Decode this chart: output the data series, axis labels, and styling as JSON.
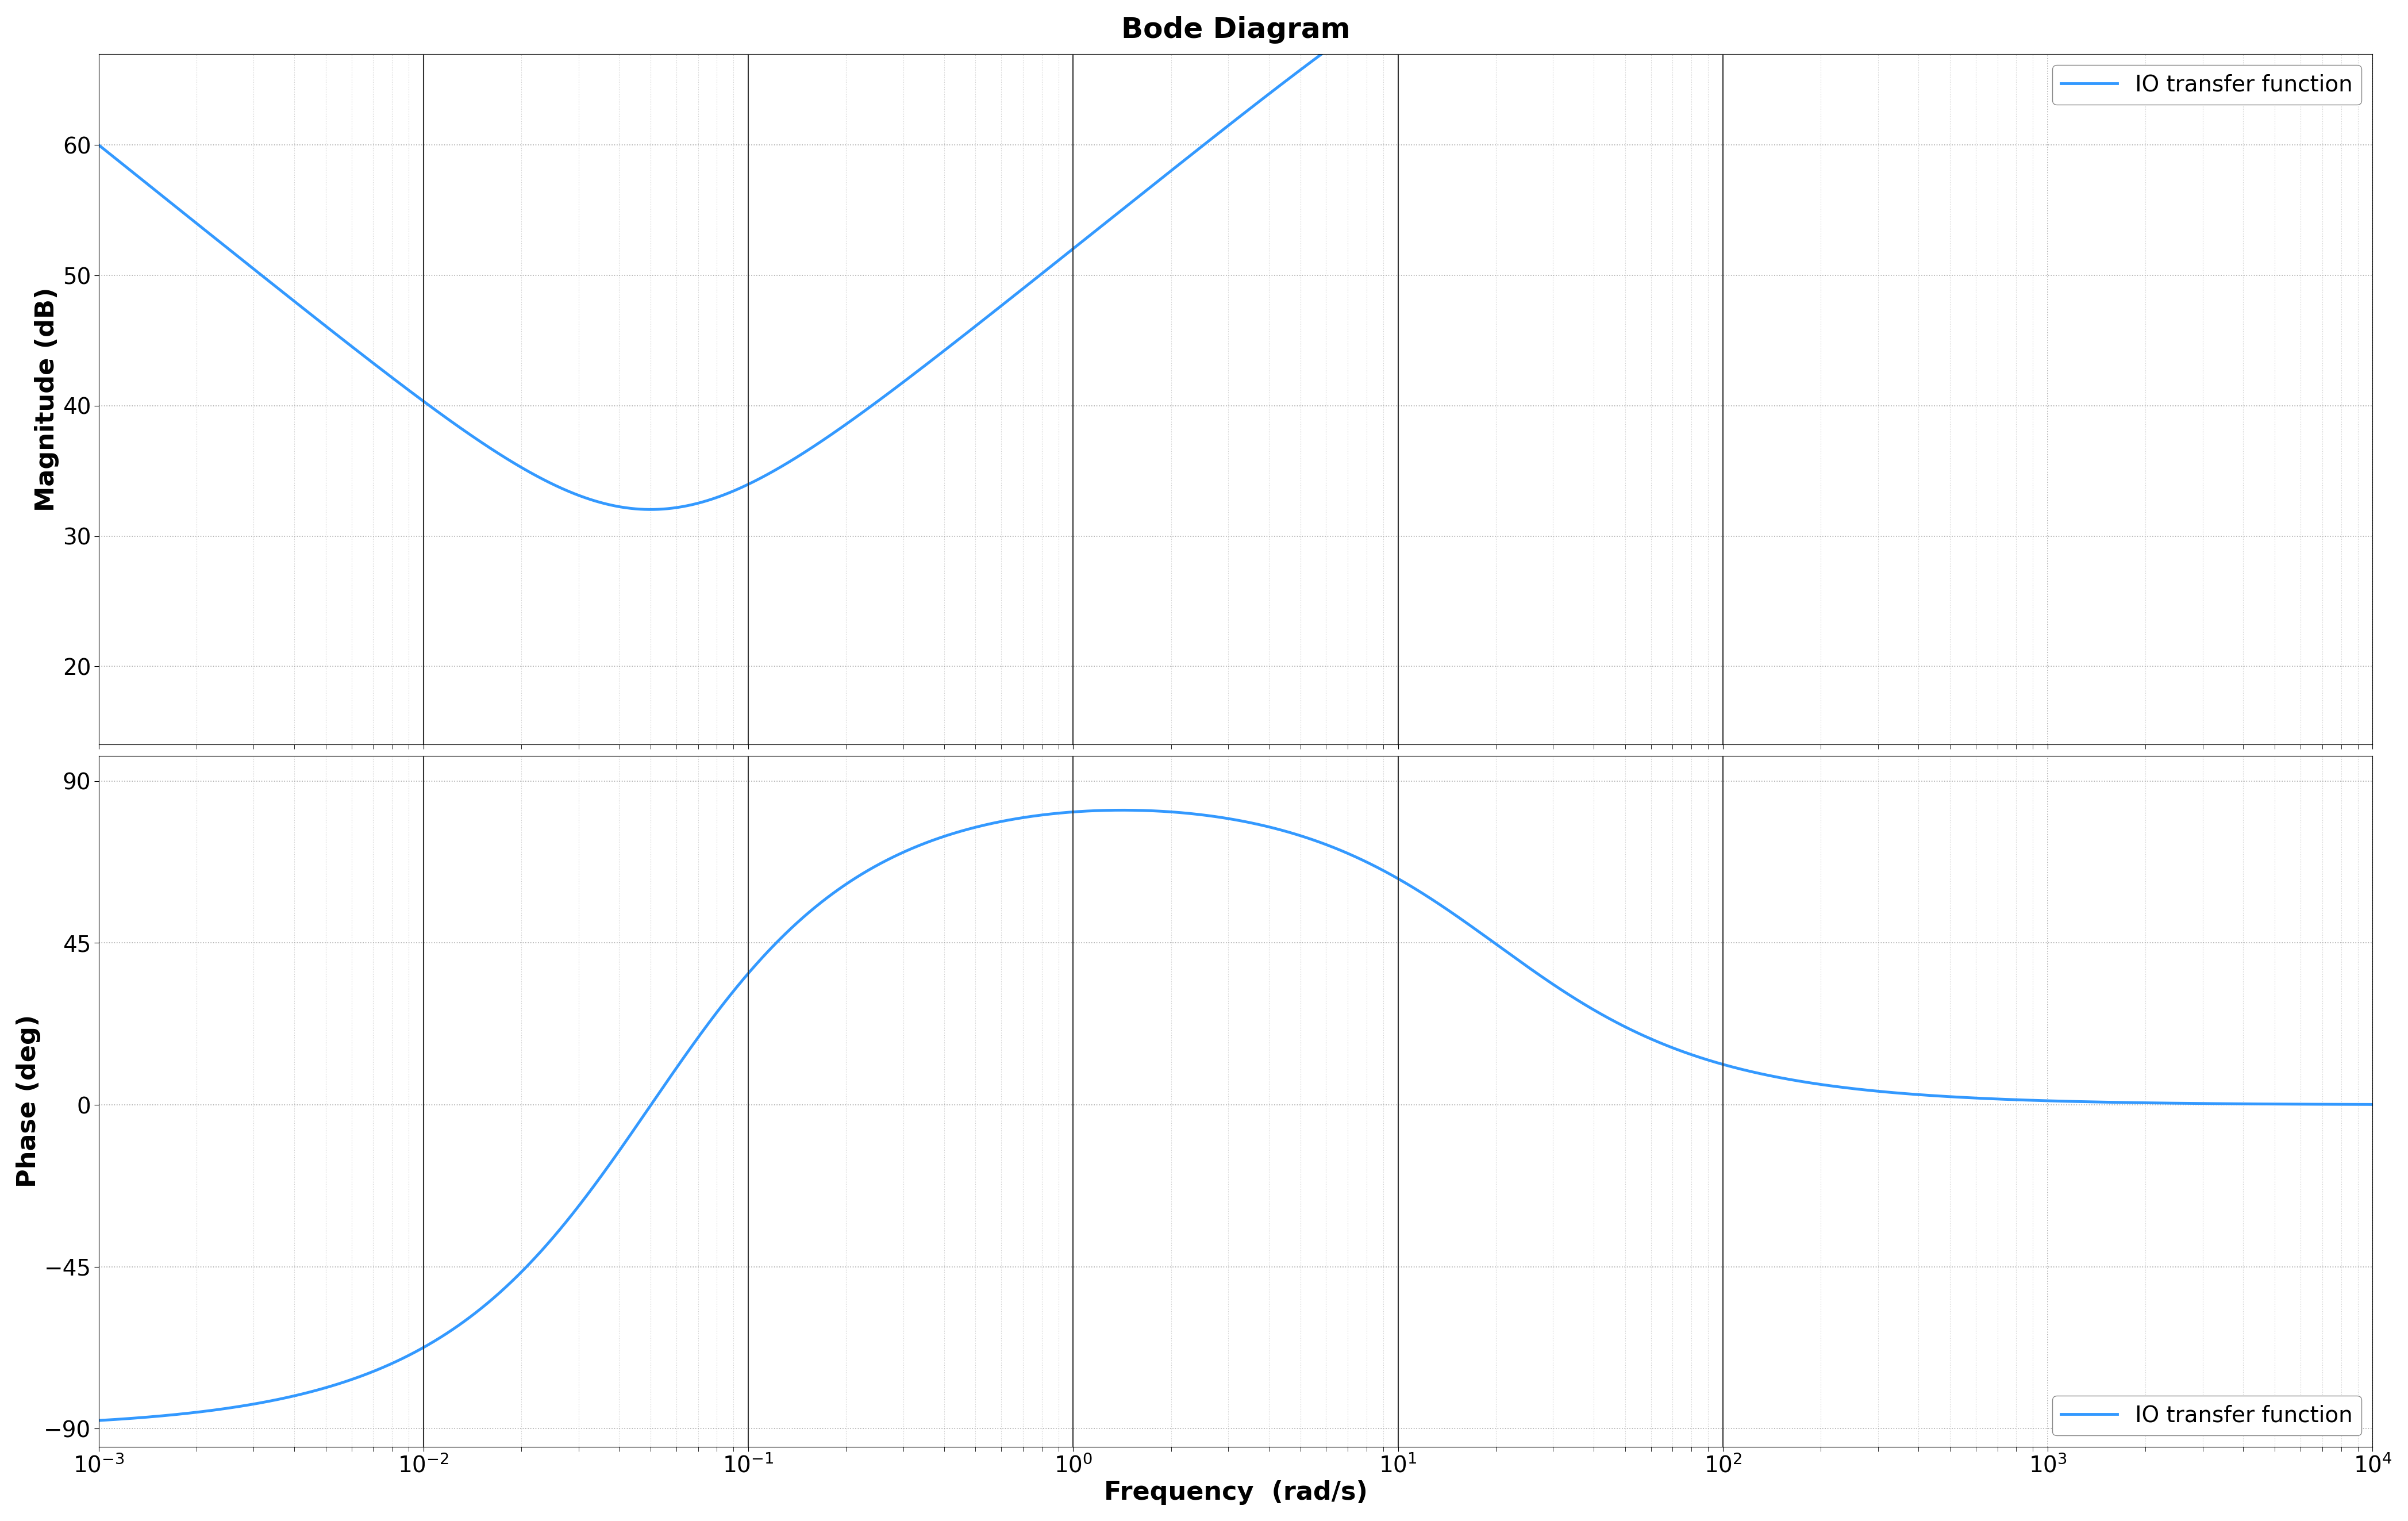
{
  "title": "Bode Diagram",
  "xlabel": "Frequency  (rad/s)",
  "ylabel_mag": "Magnitude (dB)",
  "ylabel_phase": "Phase (deg)",
  "legend_label": "IO transfer function",
  "line_color": "#3399ff",
  "line_width": 3.5,
  "background_color": "#ffffff",
  "grid_major_color": "#aaaaaa",
  "grid_minor_color": "#cccccc",
  "mag_ylim": [
    14,
    67
  ],
  "mag_yticks": [
    20,
    30,
    40,
    50,
    60
  ],
  "phase_ylim": [
    -95,
    97
  ],
  "phase_yticks": [
    -90,
    -45,
    0,
    45,
    90
  ],
  "xlim_log_min": -3,
  "xlim_log_max": 4,
  "vline_freqs": [
    0.01,
    0.1,
    1.0,
    10.0,
    100.0
  ],
  "title_fontsize": 36,
  "label_fontsize": 32,
  "tick_fontsize": 28,
  "legend_fontsize": 28,
  "tf_K": 1.0,
  "tf_zero": 0.05,
  "tf_pole": 20.0
}
